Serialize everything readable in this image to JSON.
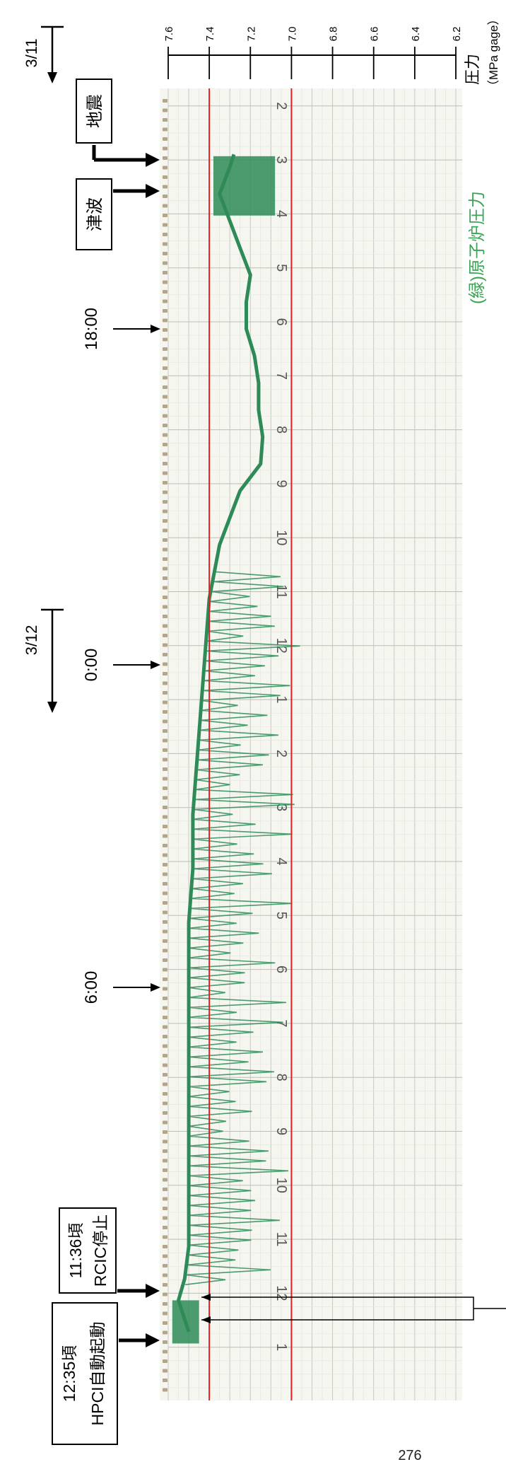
{
  "chart_data": {
    "type": "line",
    "title": "",
    "series": [
      {
        "name": "(緑)原子炉圧力",
        "color": "#2e8b57",
        "points": [
          {
            "t": "3/11 14:46",
            "p": 7.28
          },
          {
            "t": "3/11 15:00",
            "p": 7.3
          },
          {
            "t": "3/11 15:30",
            "p": 7.35
          },
          {
            "t": "3/11 16:00",
            "p": 7.3
          },
          {
            "t": "3/11 16:30",
            "p": 7.25
          },
          {
            "t": "3/11 17:00",
            "p": 7.2
          },
          {
            "t": "3/11 17:30",
            "p": 7.22
          },
          {
            "t": "3/11 18:00",
            "p": 7.22
          },
          {
            "t": "3/11 18:30",
            "p": 7.18
          },
          {
            "t": "3/11 19:00",
            "p": 7.16
          },
          {
            "t": "3/11 19:30",
            "p": 7.16
          },
          {
            "t": "3/11 20:00",
            "p": 7.14
          },
          {
            "t": "3/11 20:30",
            "p": 7.15
          },
          {
            "t": "3/11 21:00",
            "p": 7.25
          },
          {
            "t": "3/11 21:30",
            "p": 7.3
          },
          {
            "t": "3/11 22:00",
            "p": 7.35
          },
          {
            "t": "3/11 23:00",
            "p": 7.4
          },
          {
            "t": "3/12 0:00",
            "p": 7.42
          },
          {
            "t": "3/12 1:00",
            "p": 7.44
          },
          {
            "t": "3/12 2:00",
            "p": 7.46
          },
          {
            "t": "3/12 3:00",
            "p": 7.48
          },
          {
            "t": "3/12 4:00",
            "p": 7.48
          },
          {
            "t": "3/12 5:00",
            "p": 7.5
          },
          {
            "t": "3/12 6:00",
            "p": 7.5
          },
          {
            "t": "3/12 7:00",
            "p": 7.5
          },
          {
            "t": "3/12 8:00",
            "p": 7.5
          },
          {
            "t": "3/12 9:00",
            "p": 7.5
          },
          {
            "t": "3/12 10:00",
            "p": 7.5
          },
          {
            "t": "3/12 11:00",
            "p": 7.5
          },
          {
            "t": "3/12 11:36",
            "p": 7.52
          },
          {
            "t": "3/12 12:00",
            "p": 7.55
          },
          {
            "t": "3/12 12:35",
            "p": 7.5
          }
        ]
      }
    ],
    "reference_lines": [
      7.4,
      7.0
    ],
    "y_axis": {
      "label_line1": "圧力",
      "label_line2": "（MPa gage）",
      "ticks": [
        "7.6",
        "7.4",
        "7.2",
        "7.0",
        "6.8",
        "6.6",
        "6.4",
        "6.2"
      ],
      "ylim": [
        6.2,
        7.6
      ]
    },
    "time_markers": [
      {
        "label": "3/11",
        "kind": "date"
      },
      {
        "label": "地震",
        "kind": "event"
      },
      {
        "label": "津波",
        "kind": "event"
      },
      {
        "label": "18:00",
        "kind": "time"
      },
      {
        "label": "3/12",
        "kind": "date"
      },
      {
        "label": "0:00",
        "kind": "time"
      },
      {
        "label": "6:00",
        "kind": "time"
      },
      {
        "label": "11:36頃",
        "label2": "RCIC停止",
        "kind": "event"
      },
      {
        "label": "12:35頃",
        "label2": "HPCI自動起動",
        "kind": "event"
      }
    ],
    "chart_hour_numbers": [
      "2",
      "3",
      "4",
      "5",
      "6",
      "7",
      "8",
      "9",
      "10",
      "11",
      "12",
      "1",
      "2",
      "3",
      "4",
      "5",
      "6",
      "7",
      "8",
      "9",
      "10",
      "11",
      "12",
      "1"
    ],
    "page_number": "276"
  }
}
